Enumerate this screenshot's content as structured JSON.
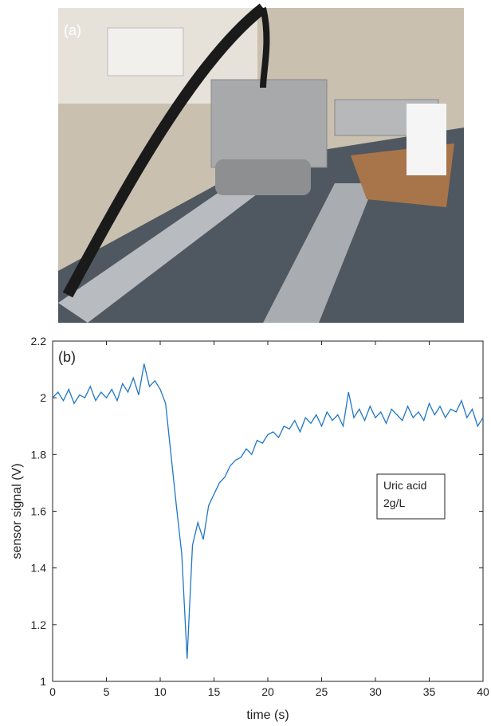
{
  "photo": {
    "label": "(a)"
  },
  "chart_data": {
    "type": "line",
    "panel_label": "(b)",
    "xlabel": "time (s)",
    "ylabel": "sensor signal (V)",
    "annotation": [
      "Uric acid",
      "2g/L"
    ],
    "x": [
      0,
      0.5,
      1,
      1.5,
      2,
      2.5,
      3,
      3.5,
      4,
      4.5,
      5,
      5.5,
      6,
      6.5,
      7,
      7.5,
      8,
      8.5,
      9,
      9.5,
      10,
      10.5,
      11,
      11.5,
      12,
      12.5,
      13,
      13.5,
      14,
      14.5,
      15,
      15.5,
      16,
      16.5,
      17,
      17.5,
      18,
      18.5,
      19,
      19.5,
      20,
      20.5,
      21,
      21.5,
      22,
      22.5,
      23,
      23.5,
      24,
      24.5,
      25,
      25.5,
      26,
      26.5,
      27,
      27.5,
      28,
      28.5,
      29,
      29.5,
      30,
      30.5,
      31,
      31.5,
      32,
      32.5,
      33,
      33.5,
      34,
      34.5,
      35,
      35.5,
      36,
      36.5,
      37,
      37.5,
      38,
      38.5,
      39,
      39.5,
      40
    ],
    "series": [
      {
        "color": "#1f77c4",
        "values": [
          2.0,
          2.02,
          1.99,
          2.03,
          1.98,
          2.01,
          2.0,
          2.04,
          1.99,
          2.02,
          2.0,
          2.03,
          1.99,
          2.05,
          2.02,
          2.07,
          2.01,
          2.12,
          2.04,
          2.06,
          2.03,
          1.98,
          1.8,
          1.62,
          1.45,
          1.08,
          1.48,
          1.56,
          1.5,
          1.62,
          1.66,
          1.7,
          1.72,
          1.76,
          1.78,
          1.79,
          1.82,
          1.8,
          1.85,
          1.84,
          1.87,
          1.88,
          1.86,
          1.9,
          1.89,
          1.92,
          1.88,
          1.93,
          1.91,
          1.94,
          1.9,
          1.95,
          1.92,
          1.94,
          1.9,
          2.02,
          1.93,
          1.96,
          1.92,
          1.97,
          1.93,
          1.95,
          1.91,
          1.96,
          1.94,
          1.92,
          1.97,
          1.93,
          1.95,
          1.92,
          1.98,
          1.94,
          1.97,
          1.93,
          1.96,
          1.95,
          1.99,
          1.93,
          1.96,
          1.9,
          1.93
        ]
      }
    ],
    "xlim": [
      0,
      40
    ],
    "xticks": [
      0,
      5,
      10,
      15,
      20,
      25,
      30,
      35,
      40
    ],
    "ylim": [
      1,
      2.2
    ],
    "yticks": [
      1,
      1.2,
      1.4,
      1.6,
      1.8,
      2,
      2.2
    ]
  }
}
